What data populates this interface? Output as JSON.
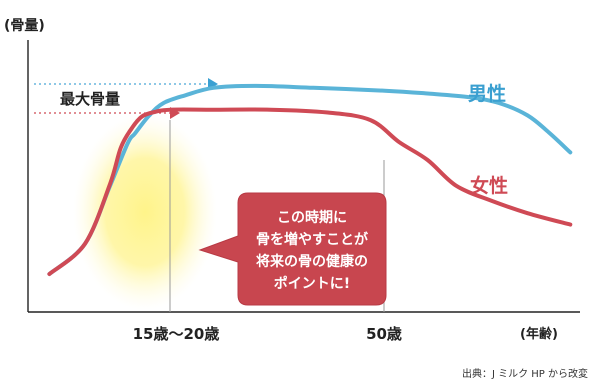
{
  "chart_data": {
    "type": "line",
    "ylabel": "(骨量)",
    "xlabel": "(年齢)",
    "x_ticks": [
      "15歳〜20歳",
      "50歳"
    ],
    "grid": false,
    "annotation_peak": "最大骨量",
    "callout_lines": [
      "この時期に",
      "骨を増やすことが",
      "将来の骨の健康の",
      "ポイントに!"
    ],
    "series": [
      {
        "name": "男性",
        "color": "#5ab4d8",
        "points": [
          [
            3,
            40
          ],
          [
            8,
            72
          ],
          [
            11.5,
            133
          ],
          [
            14,
            178
          ],
          [
            15,
            188
          ],
          [
            17,
            207
          ],
          [
            19,
            220
          ],
          [
            22,
            228
          ],
          [
            26,
            236
          ],
          [
            32,
            238
          ],
          [
            40,
            236
          ],
          [
            50,
            233
          ],
          [
            56,
            230
          ],
          [
            62,
            226
          ],
          [
            66,
            220
          ],
          [
            70,
            207
          ],
          [
            73,
            189
          ],
          [
            76,
            168
          ]
        ]
      },
      {
        "name": "女性",
        "color": "#cf4a55",
        "points": [
          [
            3,
            40
          ],
          [
            8,
            72
          ],
          [
            11.5,
            135
          ],
          [
            13,
            173
          ],
          [
            14.5,
            193
          ],
          [
            16,
            206
          ],
          [
            18,
            211
          ],
          [
            20,
            213
          ],
          [
            26,
            213
          ],
          [
            34,
            213
          ],
          [
            42,
            210
          ],
          [
            48,
            202
          ],
          [
            52,
            179
          ],
          [
            56,
            160
          ],
          [
            60,
            133
          ],
          [
            65,
            117
          ],
          [
            70,
            104
          ],
          [
            76,
            92
          ]
        ]
      }
    ],
    "footnote": "出典：J ミルク HP から改変"
  }
}
